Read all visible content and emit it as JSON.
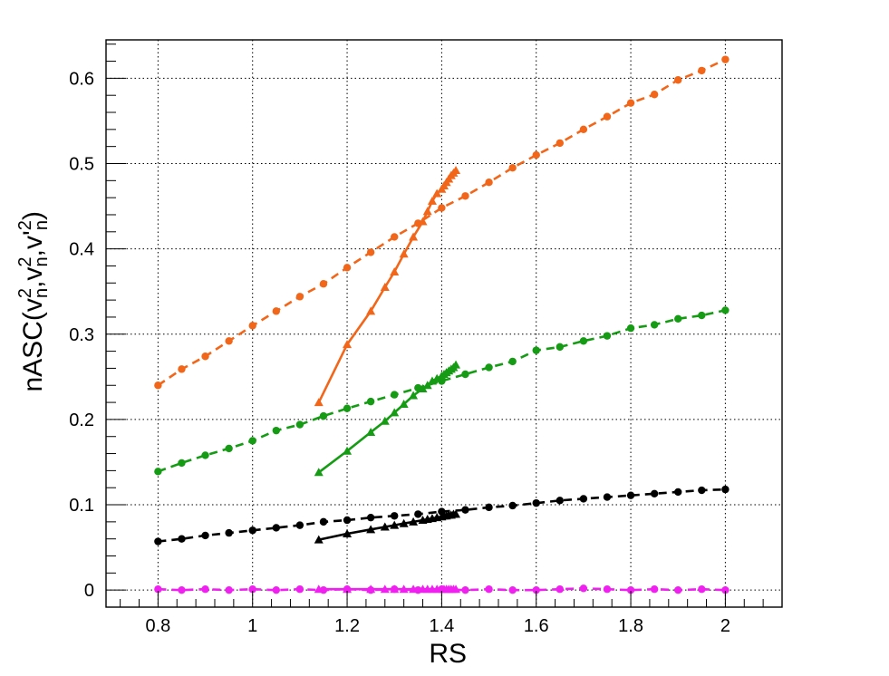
{
  "chart_data": {
    "type": "line",
    "title": "",
    "xlabel": "RS",
    "ylabel_parts": [
      "nASC(v",
      "2",
      "n",
      ",v",
      "2",
      "n",
      ",v'",
      "2",
      "n",
      ")"
    ],
    "xlim": [
      0.69,
      2.12
    ],
    "ylim": [
      -0.02,
      0.645
    ],
    "xticks": [
      0.8,
      1,
      1.2,
      1.4,
      1.6,
      1.8,
      2
    ],
    "xtick_labels": [
      "0.8",
      "1",
      "1.2",
      "1.4",
      "1.6",
      "1.8",
      "2"
    ],
    "yticks": [
      0,
      0.1,
      0.2,
      0.3,
      0.4,
      0.5,
      0.6
    ],
    "ytick_labels": [
      "0",
      "0.1",
      "0.2",
      "0.3",
      "0.4",
      "0.5",
      "0.6"
    ],
    "grid": true,
    "legend": "none",
    "series": [
      {
        "color": "#f2661a",
        "line": "dashed",
        "marker": "circle",
        "x": [
          0.8,
          0.85,
          0.9,
          0.95,
          1.0,
          1.05,
          1.1,
          1.15,
          1.2,
          1.25,
          1.3,
          1.35,
          1.4,
          1.45,
          1.5,
          1.55,
          1.6,
          1.65,
          1.7,
          1.75,
          1.8,
          1.85,
          1.9,
          1.95,
          2.0
        ],
        "y": [
          0.24,
          0.259,
          0.274,
          0.292,
          0.31,
          0.327,
          0.344,
          0.359,
          0.378,
          0.396,
          0.414,
          0.43,
          0.448,
          0.462,
          0.478,
          0.495,
          0.51,
          0.524,
          0.54,
          0.555,
          0.571,
          0.581,
          0.598,
          0.609,
          0.622
        ]
      },
      {
        "color": "#f2661a",
        "line": "solid",
        "marker": "triangle",
        "x": [
          1.14,
          1.2,
          1.25,
          1.28,
          1.3,
          1.32,
          1.34,
          1.36,
          1.37,
          1.38,
          1.39,
          1.4,
          1.405,
          1.41,
          1.415,
          1.42,
          1.425,
          1.43
        ],
        "y": [
          0.22,
          0.288,
          0.327,
          0.355,
          0.373,
          0.394,
          0.414,
          0.432,
          0.444,
          0.456,
          0.465,
          0.47,
          0.474,
          0.478,
          0.482,
          0.486,
          0.489,
          0.492
        ]
      },
      {
        "color": "#159b14",
        "line": "dashed",
        "marker": "circle",
        "x": [
          0.8,
          0.85,
          0.9,
          0.95,
          1.0,
          1.05,
          1.1,
          1.15,
          1.2,
          1.25,
          1.3,
          1.35,
          1.4,
          1.45,
          1.5,
          1.55,
          1.6,
          1.65,
          1.7,
          1.75,
          1.8,
          1.85,
          1.9,
          1.95,
          2.0
        ],
        "y": [
          0.139,
          0.149,
          0.158,
          0.166,
          0.175,
          0.187,
          0.194,
          0.204,
          0.213,
          0.221,
          0.229,
          0.237,
          0.245,
          0.253,
          0.261,
          0.268,
          0.281,
          0.285,
          0.292,
          0.298,
          0.307,
          0.311,
          0.318,
          0.322,
          0.328
        ]
      },
      {
        "color": "#159b14",
        "line": "solid",
        "marker": "triangle",
        "x": [
          1.14,
          1.2,
          1.25,
          1.28,
          1.3,
          1.32,
          1.34,
          1.36,
          1.37,
          1.38,
          1.39,
          1.4,
          1.405,
          1.41,
          1.415,
          1.42,
          1.425,
          1.43
        ],
        "y": [
          0.138,
          0.163,
          0.185,
          0.198,
          0.208,
          0.218,
          0.228,
          0.236,
          0.24,
          0.245,
          0.248,
          0.251,
          0.253,
          0.255,
          0.257,
          0.259,
          0.261,
          0.264
        ]
      },
      {
        "color": "#000000",
        "line": "dashed",
        "marker": "circle",
        "x": [
          0.8,
          0.85,
          0.9,
          0.95,
          1.0,
          1.05,
          1.1,
          1.15,
          1.2,
          1.25,
          1.3,
          1.35,
          1.4,
          1.45,
          1.5,
          1.55,
          1.6,
          1.65,
          1.7,
          1.75,
          1.8,
          1.85,
          1.9,
          1.95,
          2.0
        ],
        "y": [
          0.057,
          0.06,
          0.064,
          0.067,
          0.07,
          0.073,
          0.076,
          0.08,
          0.082,
          0.085,
          0.087,
          0.089,
          0.092,
          0.094,
          0.097,
          0.099,
          0.102,
          0.105,
          0.107,
          0.109,
          0.111,
          0.113,
          0.115,
          0.117,
          0.118
        ]
      },
      {
        "color": "#000000",
        "line": "solid",
        "marker": "triangle",
        "x": [
          1.14,
          1.2,
          1.25,
          1.28,
          1.3,
          1.32,
          1.34,
          1.36,
          1.37,
          1.38,
          1.39,
          1.4,
          1.405,
          1.41,
          1.415,
          1.42,
          1.425,
          1.43
        ],
        "y": [
          0.059,
          0.066,
          0.071,
          0.074,
          0.076,
          0.078,
          0.08,
          0.082,
          0.083,
          0.084,
          0.085,
          0.086,
          0.087,
          0.087,
          0.088,
          0.088,
          0.089,
          0.089
        ]
      },
      {
        "color": "#f020f0",
        "line": "dashed",
        "marker": "circle",
        "x": [
          0.8,
          0.85,
          0.9,
          0.95,
          1.0,
          1.05,
          1.1,
          1.15,
          1.2,
          1.25,
          1.3,
          1.35,
          1.4,
          1.45,
          1.5,
          1.55,
          1.6,
          1.65,
          1.7,
          1.75,
          1.8,
          1.85,
          1.9,
          1.95,
          2.0
        ],
        "y": [
          0.001,
          0.0,
          0.001,
          0.0,
          0.001,
          0.0,
          0.001,
          0.0,
          0.001,
          0.0,
          0.001,
          0.0,
          0.001,
          0.0,
          0.001,
          0.0,
          0.0,
          0.001,
          0.002,
          0.001,
          0.0,
          0.001,
          0.0,
          0.001,
          0.0
        ]
      },
      {
        "color": "#f020f0",
        "line": "solid",
        "marker": "triangle",
        "x": [
          1.14,
          1.2,
          1.25,
          1.28,
          1.3,
          1.32,
          1.34,
          1.36,
          1.37,
          1.38,
          1.39,
          1.4,
          1.405,
          1.41,
          1.415,
          1.42,
          1.425,
          1.43
        ],
        "y": [
          0.001,
          0.001,
          0.001,
          0.001,
          0.001,
          0.001,
          0.001,
          0.001,
          0.001,
          0.001,
          0.001,
          0.001,
          0.001,
          0.001,
          0.001,
          0.001,
          0.001,
          0.001
        ]
      }
    ]
  }
}
